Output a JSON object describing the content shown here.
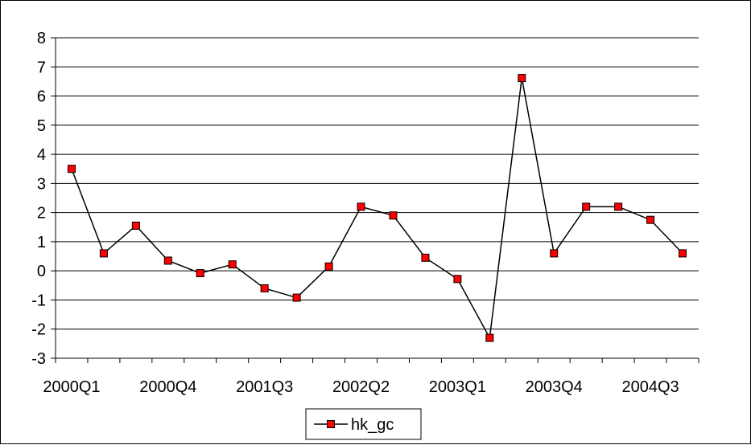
{
  "chart_data": {
    "type": "line",
    "title": "",
    "xlabel": "",
    "ylabel": "",
    "categories": [
      "2000Q1",
      "2000Q2",
      "2000Q3",
      "2000Q4",
      "2001Q1",
      "2001Q2",
      "2001Q3",
      "2001Q4",
      "2002Q1",
      "2002Q2",
      "2002Q3",
      "2002Q4",
      "2003Q1",
      "2003Q2",
      "2003Q3",
      "2003Q4",
      "2004Q1",
      "2004Q2",
      "2004Q3",
      "2004Q4"
    ],
    "x_tick_labels": [
      "2000Q1",
      "2000Q4",
      "2001Q3",
      "2002Q2",
      "2003Q1",
      "2003Q4",
      "2004Q3"
    ],
    "ylim": [
      -3,
      8
    ],
    "y_ticks": [
      -3,
      -2,
      -1,
      0,
      1,
      2,
      3,
      4,
      5,
      6,
      7,
      8
    ],
    "grid": true,
    "legend_position": "bottom",
    "series": [
      {
        "name": "hk_gc",
        "color": "#000000",
        "marker_color": "#ff0000",
        "marker": "square",
        "values": [
          3.5,
          0.6,
          1.55,
          0.35,
          -0.08,
          0.22,
          -0.6,
          -0.92,
          0.15,
          2.2,
          1.9,
          0.45,
          -0.28,
          -2.3,
          6.62,
          0.6,
          2.2,
          2.2,
          1.75,
          0.6
        ]
      }
    ]
  }
}
